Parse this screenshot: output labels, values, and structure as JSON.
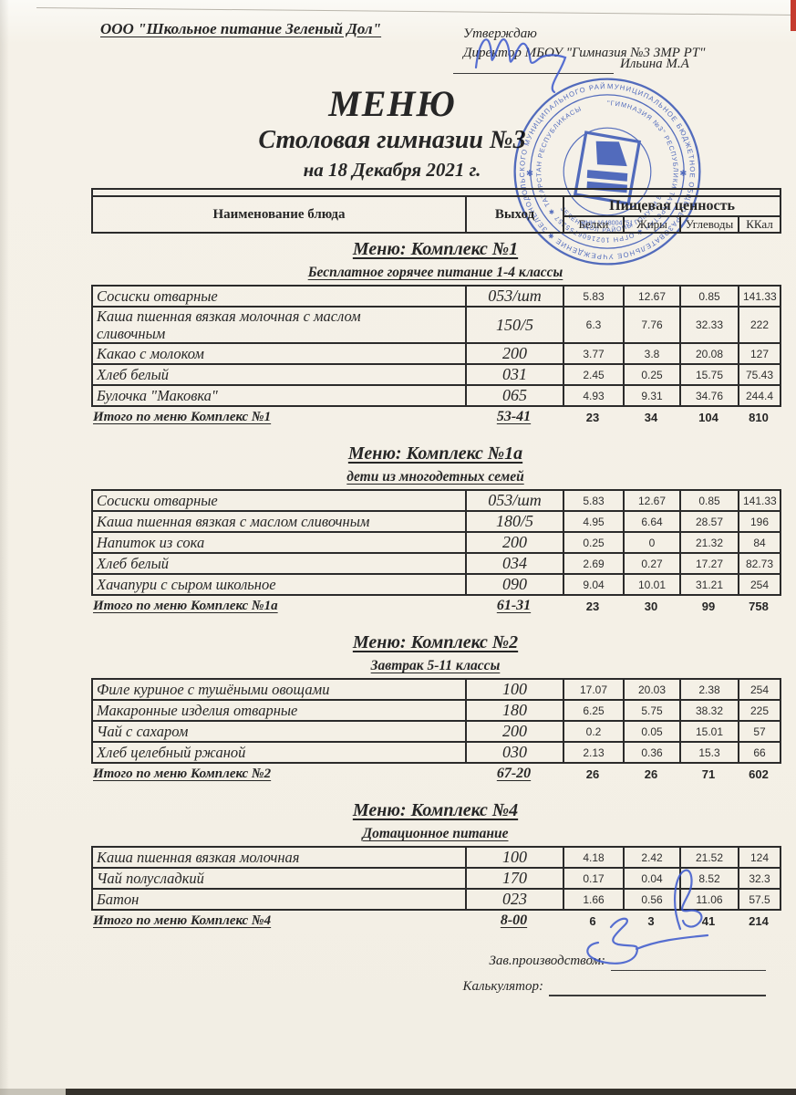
{
  "header": {
    "company": "ООО \"Школьное питание Зеленый Дол\"",
    "approve_label": "Утверждаю",
    "approve_director": "Директор МБОУ \"Гимназия №3 ЗМР РТ\"",
    "approve_name": "Ильина М.А"
  },
  "title": {
    "main": "МЕНЮ",
    "subtitle": "Столовая гимназии №3",
    "date_line": "на 18 Декабря 2021 г."
  },
  "stamp": {
    "ring_outer": "МУНИЦИПАЛЬНОЕ БЮДЖЕТНОЕ ОБЩЕОБРАЗОВАТЕЛЬНОЕ УЧРЕЖДЕНИЕ ✱ ЗЕЛЕНОДОЛЬСКОГО МУНИЦИПАЛЬНОГО РАЙОНА ✱",
    "ring_middle": "\"ГИМНАЗИЯ №3\" РЕСПУБЛИКИ ТАТАРСТАН ✱ ОГРН 1021606755257 ✱ ТАТАРСТАН РЕСПУБЛИКАСЫ",
    "ring_bottom": "ЗЕЛЕНОДОЛ РАЙОНЫ ГОМУМИ БЕЛЕМ БИРҮ",
    "inn": "ИНН 1648004751",
    "color": "#2f52c5"
  },
  "table_header": {
    "col_name": "Наименование блюда",
    "col_out": "Выход",
    "col_nutrition": "Пищевая ценность",
    "sub_cols": [
      "Белки",
      "Жиры",
      "Углеводы",
      "ККал"
    ]
  },
  "sections": [
    {
      "title": "Меню: Комплекс №1",
      "subtitle": "Бесплатное горячее питание  1-4 классы",
      "rows": [
        {
          "name": "Сосиски  отварные",
          "out": "053/шт",
          "protein": "5.83",
          "fat": "12.67",
          "carbs": "0.85",
          "kcal": "141.33"
        },
        {
          "name": "Каша пшенная вязкая молочная с маслом\nсливочным",
          "out": "150/5",
          "protein": "6.3",
          "fat": "7.76",
          "carbs": "32.33",
          "kcal": "222"
        },
        {
          "name": "Какао с  молоком",
          "out": "200",
          "protein": "3.77",
          "fat": "3.8",
          "carbs": "20.08",
          "kcal": "127"
        },
        {
          "name": "Хлеб белый",
          "out": "031",
          "protein": "2.45",
          "fat": "0.25",
          "carbs": "15.75",
          "kcal": "75.43"
        },
        {
          "name": "Булочка \"Маковка\"",
          "out": "065",
          "protein": "4.93",
          "fat": "9.31",
          "carbs": "34.76",
          "kcal": "244.4"
        }
      ],
      "total": {
        "label": "Итого по меню Комплекс №1",
        "out": "53-41",
        "protein": "23",
        "fat": "34",
        "carbs": "104",
        "kcal": "810"
      }
    },
    {
      "title": "Меню: Комплекс №1а",
      "subtitle": "дети из многодетных семей",
      "rows": [
        {
          "name": "Сосиски  отварные",
          "out": "053/шт",
          "protein": "5.83",
          "fat": "12.67",
          "carbs": "0.85",
          "kcal": "141.33"
        },
        {
          "name": "Каша пшенная вязкая с маслом сливочным",
          "out": "180/5",
          "protein": "4.95",
          "fat": "6.64",
          "carbs": "28.57",
          "kcal": "196"
        },
        {
          "name": "Напиток  из сока",
          "out": "200",
          "protein": "0.25",
          "fat": "0",
          "carbs": "21.32",
          "kcal": "84"
        },
        {
          "name": "Хлеб белый",
          "out": "034",
          "protein": "2.69",
          "fat": "0.27",
          "carbs": "17.27",
          "kcal": "82.73"
        },
        {
          "name": "Хачапури с сыром школьное",
          "out": "090",
          "protein": "9.04",
          "fat": "10.01",
          "carbs": "31.21",
          "kcal": "254"
        }
      ],
      "total": {
        "label": "Итого по меню Комплекс №1а",
        "out": "61-31",
        "protein": "23",
        "fat": "30",
        "carbs": "99",
        "kcal": "758"
      }
    },
    {
      "title": "Меню: Комплекс №2",
      "subtitle": "Завтрак 5-11 классы",
      "rows": [
        {
          "name": "Филе куриное с тушёными овощами",
          "out": "100",
          "protein": "17.07",
          "fat": "20.03",
          "carbs": "2.38",
          "kcal": "254"
        },
        {
          "name": "Макаронные изделия отварные",
          "out": "180",
          "protein": "6.25",
          "fat": "5.75",
          "carbs": "38.32",
          "kcal": "225"
        },
        {
          "name": "Чай с сахаром",
          "out": "200",
          "protein": "0.2",
          "fat": "0.05",
          "carbs": "15.01",
          "kcal": "57"
        },
        {
          "name": "Хлеб  целебный ржаной",
          "out": "030",
          "protein": "2.13",
          "fat": "0.36",
          "carbs": "15.3",
          "kcal": "66"
        }
      ],
      "total": {
        "label": "Итого по меню Комплекс №2",
        "out": "67-20",
        "protein": "26",
        "fat": "26",
        "carbs": "71",
        "kcal": "602"
      }
    },
    {
      "title": "Меню: Комплекс №4",
      "subtitle": "Дотационное питание",
      "rows": [
        {
          "name": "Каша пшенная вязкая молочная",
          "out": "100",
          "protein": "4.18",
          "fat": "2.42",
          "carbs": "21.52",
          "kcal": "124"
        },
        {
          "name": "Чай полусладкий",
          "out": "170",
          "protein": "0.17",
          "fat": "0.04",
          "carbs": "8.52",
          "kcal": "32.3"
        },
        {
          "name": "Батон",
          "out": "023",
          "protein": "1.66",
          "fat": "0.56",
          "carbs": "11.06",
          "kcal": "57.5"
        }
      ],
      "total": {
        "label": "Итого по меню Комплекс №4",
        "out": "8-00",
        "protein": "6",
        "fat": "3",
        "carbs": "41",
        "kcal": "214"
      }
    }
  ],
  "footer": {
    "manager_label": "Зав.производством:",
    "calculator_label": "Калькулятор:"
  }
}
